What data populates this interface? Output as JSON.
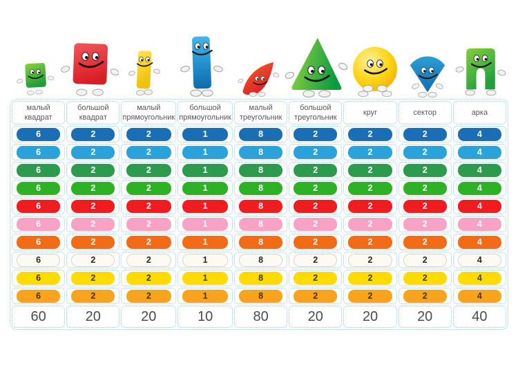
{
  "page": {
    "background_color": "#ffffff"
  },
  "table": {
    "outer_border_color": "#85c6e8",
    "cell_border_color": "#8cc8e8",
    "header_text_color": "#57585a",
    "totals_text_color": "#4b4b4d",
    "columns": [
      {
        "key": "small-square",
        "label": "малый квадрат",
        "character": "small-green-square"
      },
      {
        "key": "big-square",
        "label": "большой квадрат",
        "character": "big-red-square"
      },
      {
        "key": "small-rectangle",
        "label": "малый прямоугольник",
        "character": "small-yellow-rectangle"
      },
      {
        "key": "big-rectangle",
        "label": "большой прямоугольник",
        "character": "big-blue-rectangle"
      },
      {
        "key": "small-triangle",
        "label": "малый треугольник",
        "character": "small-red-triangle"
      },
      {
        "key": "big-triangle",
        "label": "большой треугольник",
        "character": "big-green-triangle"
      },
      {
        "key": "circle",
        "label": "круг",
        "character": "yellow-circle"
      },
      {
        "key": "sector",
        "label": "сектор",
        "character": "blue-sector"
      },
      {
        "key": "arch",
        "label": "арка",
        "character": "green-arch"
      }
    ],
    "rows": [
      {
        "name": "dark-blue",
        "pill_color": "#1a6fb4",
        "text_color": "#ffffff",
        "values": [
          6,
          2,
          2,
          1,
          8,
          2,
          2,
          2,
          4
        ]
      },
      {
        "name": "light-blue",
        "pill_color": "#2aa3dc",
        "text_color": "#ffffff",
        "values": [
          6,
          2,
          2,
          1,
          8,
          2,
          2,
          2,
          4
        ]
      },
      {
        "name": "dark-green",
        "pill_color": "#2d9b4d",
        "text_color": "#ffffff",
        "values": [
          6,
          2,
          2,
          1,
          8,
          2,
          2,
          2,
          4
        ]
      },
      {
        "name": "bright-green",
        "pill_color": "#2db226",
        "text_color": "#ffffff",
        "values": [
          6,
          2,
          2,
          1,
          8,
          2,
          2,
          2,
          4
        ]
      },
      {
        "name": "red",
        "pill_color": "#f11b20",
        "text_color": "#ffffff",
        "values": [
          6,
          2,
          2,
          1,
          8,
          2,
          2,
          2,
          4
        ]
      },
      {
        "name": "pink",
        "pill_color": "#f8a2c6",
        "text_color": "#ffffff",
        "values": [
          6,
          2,
          2,
          1,
          8,
          2,
          2,
          2,
          4
        ]
      },
      {
        "name": "orange",
        "pill_color": "#f36c15",
        "text_color": "#ffffff",
        "values": [
          6,
          2,
          2,
          1,
          8,
          2,
          2,
          2,
          4
        ]
      },
      {
        "name": "white",
        "pill_color": "#fdfaf4",
        "text_color": "#282828",
        "border_color": "#dcd2c4",
        "values": [
          6,
          2,
          2,
          1,
          8,
          2,
          2,
          2,
          4
        ]
      },
      {
        "name": "yellow",
        "pill_color": "#ffdb00",
        "text_color": "#453500",
        "values": [
          6,
          2,
          2,
          1,
          8,
          2,
          2,
          2,
          4
        ]
      },
      {
        "name": "amber",
        "pill_color": "#f8a51d",
        "text_color": "#453500",
        "values": [
          6,
          2,
          2,
          1,
          8,
          2,
          2,
          2,
          4
        ]
      }
    ],
    "totals": [
      60,
      20,
      20,
      10,
      80,
      20,
      20,
      20,
      40
    ]
  }
}
